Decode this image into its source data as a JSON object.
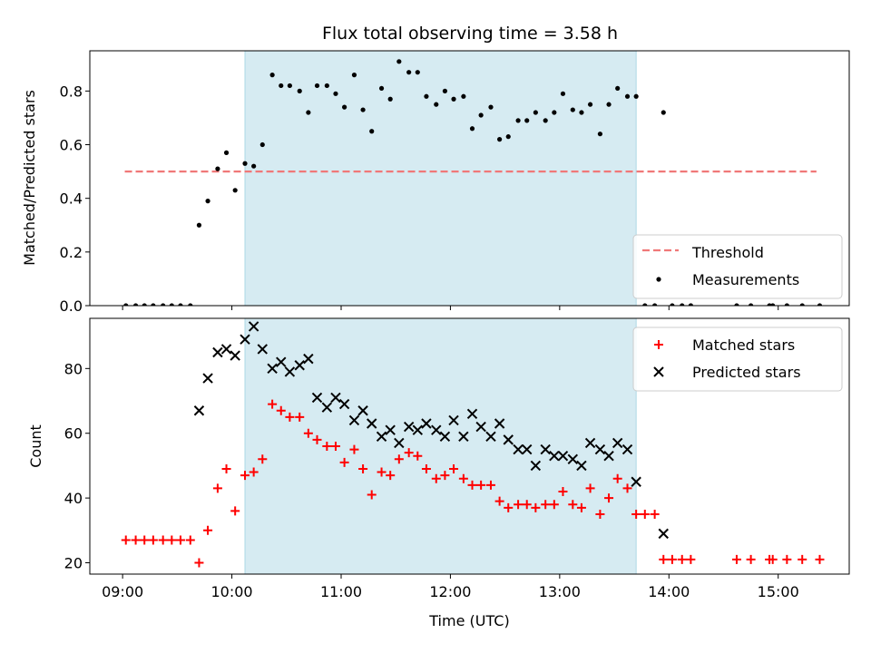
{
  "title": "Flux total observing time = 3.58 h",
  "colors": {
    "shade": "#add8e6",
    "threshold": "#f07878",
    "matched": "#ff0000",
    "predicted": "#000000",
    "measurement": "#000000"
  },
  "chart_data": [
    {
      "type": "scatter",
      "name": "top",
      "ylabel": "Matched/Predicted stars",
      "xlabel": "",
      "xlim": [
        8.7,
        15.65
      ],
      "ylim": [
        0,
        0.95
      ],
      "yticks": [
        0.0,
        0.2,
        0.4,
        0.6,
        0.8
      ],
      "ytick_labels": [
        "0.0",
        "0.2",
        "0.4",
        "0.6",
        "0.8"
      ],
      "shaded_span": [
        10.12,
        13.7
      ],
      "threshold": {
        "name": "Threshold",
        "value": 0.5,
        "x": [
          9.02,
          15.35
        ]
      },
      "legend": {
        "placement": "lower-right",
        "entries": [
          "Threshold",
          "Measurements"
        ]
      },
      "series": [
        {
          "name": "Measurements",
          "x": [
            9.03,
            9.12,
            9.2,
            9.28,
            9.37,
            9.45,
            9.53,
            9.62,
            9.7,
            9.78,
            9.87,
            9.95,
            10.03,
            10.12,
            10.2,
            10.28,
            10.37,
            10.45,
            10.53,
            10.62,
            10.7,
            10.78,
            10.87,
            10.95,
            11.03,
            11.12,
            11.2,
            11.28,
            11.37,
            11.45,
            11.53,
            11.62,
            11.7,
            11.78,
            11.87,
            11.95,
            12.03,
            12.12,
            12.2,
            12.28,
            12.37,
            12.45,
            12.53,
            12.62,
            12.7,
            12.78,
            12.87,
            12.95,
            13.03,
            13.12,
            13.2,
            13.28,
            13.37,
            13.45,
            13.53,
            13.62,
            13.7,
            13.78,
            13.87,
            13.95,
            14.03,
            14.12,
            14.2,
            14.62,
            14.75,
            14.92,
            14.95,
            15.08,
            15.22,
            15.38
          ],
          "y": [
            0,
            0,
            0,
            0,
            0,
            0,
            0,
            0,
            0.3,
            0.39,
            0.51,
            0.57,
            0.43,
            0.53,
            0.52,
            0.6,
            0.86,
            0.82,
            0.82,
            0.8,
            0.72,
            0.82,
            0.82,
            0.79,
            0.74,
            0.86,
            0.73,
            0.65,
            0.81,
            0.77,
            0.91,
            0.87,
            0.87,
            0.78,
            0.75,
            0.8,
            0.77,
            0.78,
            0.66,
            0.71,
            0.74,
            0.62,
            0.63,
            0.69,
            0.69,
            0.72,
            0.69,
            0.72,
            0.79,
            0.73,
            0.72,
            0.75,
            0.64,
            0.75,
            0.81,
            0.78,
            0.78,
            0,
            0,
            0.72,
            0,
            0,
            0,
            0,
            0,
            0,
            0,
            0,
            0,
            0
          ]
        }
      ]
    },
    {
      "type": "scatter",
      "name": "bottom",
      "ylabel": "Count",
      "xlabel": "Time (UTC)",
      "xlim": [
        8.7,
        15.65
      ],
      "ylim": [
        16.5,
        95.5
      ],
      "yticks": [
        20,
        40,
        60,
        80
      ],
      "ytick_labels": [
        "20",
        "40",
        "60",
        "80"
      ],
      "xticks": [
        9,
        10,
        11,
        12,
        13,
        14,
        15
      ],
      "xtick_labels": [
        "09:00",
        "10:00",
        "11:00",
        "12:00",
        "13:00",
        "14:00",
        "15:00"
      ],
      "shaded_span": [
        10.12,
        13.7
      ],
      "legend": {
        "placement": "upper-right",
        "entries": [
          "Matched stars",
          "Predicted stars"
        ]
      },
      "series": [
        {
          "name": "Matched stars",
          "x": [
            9.03,
            9.12,
            9.2,
            9.28,
            9.37,
            9.45,
            9.53,
            9.62,
            9.7,
            9.78,
            9.87,
            9.95,
            10.03,
            10.12,
            10.2,
            10.28,
            10.37,
            10.45,
            10.53,
            10.62,
            10.7,
            10.78,
            10.87,
            10.95,
            11.03,
            11.12,
            11.2,
            11.28,
            11.37,
            11.45,
            11.53,
            11.62,
            11.7,
            11.78,
            11.87,
            11.95,
            12.03,
            12.12,
            12.2,
            12.28,
            12.37,
            12.45,
            12.53,
            12.62,
            12.7,
            12.78,
            12.87,
            12.95,
            13.03,
            13.12,
            13.2,
            13.28,
            13.37,
            13.45,
            13.53,
            13.62,
            13.7,
            13.78,
            13.87,
            13.95,
            14.03,
            14.12,
            14.2,
            14.62,
            14.75,
            14.92,
            14.95,
            15.08,
            15.22,
            15.38
          ],
          "y": [
            27,
            27,
            27,
            27,
            27,
            27,
            27,
            27,
            20,
            30,
            43,
            49,
            36,
            47,
            48,
            52,
            69,
            67,
            65,
            65,
            60,
            58,
            56,
            56,
            51,
            55,
            49,
            41,
            48,
            47,
            52,
            54,
            53,
            49,
            46,
            47,
            49,
            46,
            44,
            44,
            44,
            39,
            37,
            38,
            38,
            37,
            38,
            38,
            42,
            38,
            37,
            43,
            35,
            40,
            46,
            43,
            35,
            35,
            35,
            21,
            21,
            21,
            21,
            21,
            21,
            21,
            21,
            21,
            21,
            21
          ]
        },
        {
          "name": "Predicted stars",
          "x": [
            9.7,
            9.78,
            9.87,
            9.95,
            10.03,
            10.12,
            10.2,
            10.28,
            10.37,
            10.45,
            10.53,
            10.62,
            10.7,
            10.78,
            10.87,
            10.95,
            11.03,
            11.12,
            11.2,
            11.28,
            11.37,
            11.45,
            11.53,
            11.62,
            11.7,
            11.78,
            11.87,
            11.95,
            12.03,
            12.12,
            12.2,
            12.28,
            12.37,
            12.45,
            12.53,
            12.62,
            12.7,
            12.78,
            12.87,
            12.95,
            13.03,
            13.12,
            13.2,
            13.28,
            13.37,
            13.45,
            13.53,
            13.62,
            13.7,
            13.95
          ],
          "y": [
            67,
            77,
            85,
            86,
            84,
            89,
            93,
            86,
            80,
            82,
            79,
            81,
            83,
            71,
            68,
            71,
            69,
            64,
            67,
            63,
            59,
            61,
            57,
            62,
            61,
            63,
            61,
            59,
            64,
            59,
            66,
            62,
            59,
            63,
            58,
            55,
            55,
            50,
            55,
            53,
            53,
            52,
            50,
            57,
            55,
            53,
            57,
            55,
            45,
            29
          ]
        }
      ]
    }
  ]
}
